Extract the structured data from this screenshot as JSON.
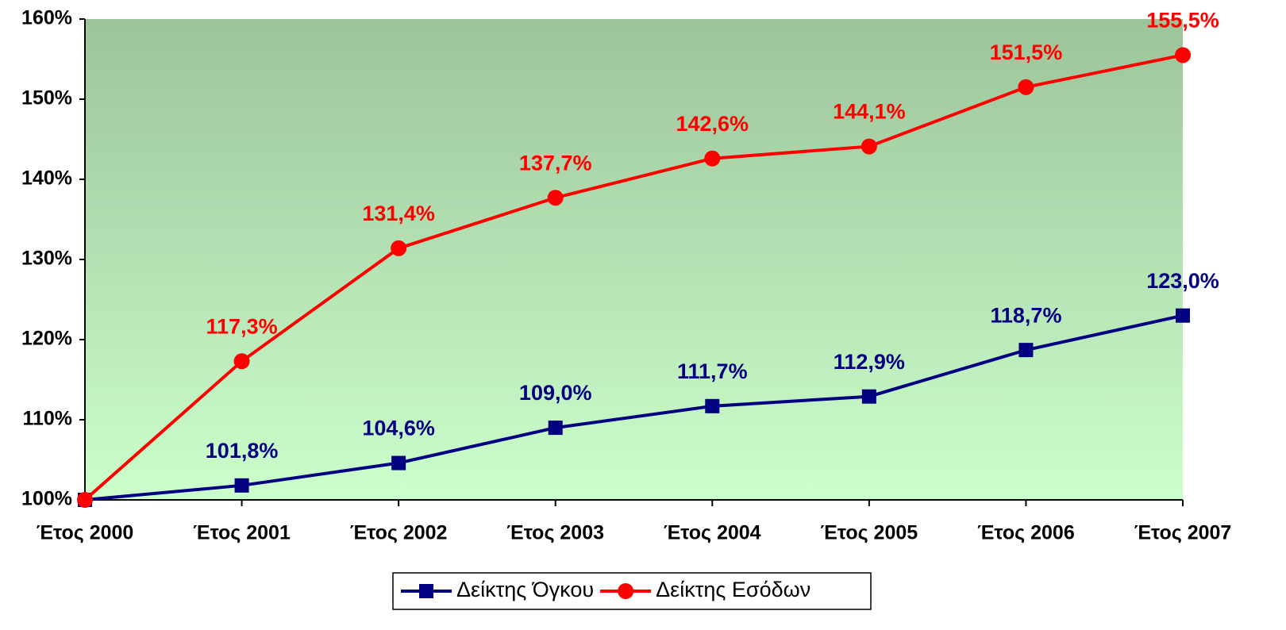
{
  "chart_data": {
    "type": "line",
    "categories": [
      "Έτος 2000",
      "Έτος 2001",
      "Έτος 2002",
      "Έτος 2003",
      "Έτος 2004",
      "Έτος 2005",
      "Έτος 2006",
      "Έτος 2007"
    ],
    "series": [
      {
        "name": "Δείκτης Όγκου",
        "color": "#000080",
        "marker": "square",
        "values": [
          100,
          101.8,
          104.6,
          109.0,
          111.7,
          112.9,
          118.7,
          123.0
        ],
        "value_labels": [
          null,
          "101,8%",
          "104,6%",
          "109,0%",
          "111,7%",
          "112,9%",
          "118,7%",
          "123,0%"
        ]
      },
      {
        "name": "Δείκτης Εσόδων",
        "color": "#ff0000",
        "marker": "circle",
        "values": [
          100,
          117.3,
          131.4,
          137.7,
          142.6,
          144.1,
          151.5,
          155.5
        ],
        "value_labels": [
          null,
          "117,3%",
          "131,4%",
          "137,7%",
          "142,6%",
          "144,1%",
          "151,5%",
          "155,5%"
        ]
      }
    ],
    "ylim": [
      100,
      160
    ],
    "yticks": [
      {
        "value": 100,
        "label": "100%"
      },
      {
        "value": 110,
        "label": "110%"
      },
      {
        "value": 120,
        "label": "120%"
      },
      {
        "value": 130,
        "label": "130%"
      },
      {
        "value": 140,
        "label": "140%"
      },
      {
        "value": 150,
        "label": "150%"
      },
      {
        "value": 160,
        "label": "160%"
      }
    ],
    "legend": "bottom"
  }
}
